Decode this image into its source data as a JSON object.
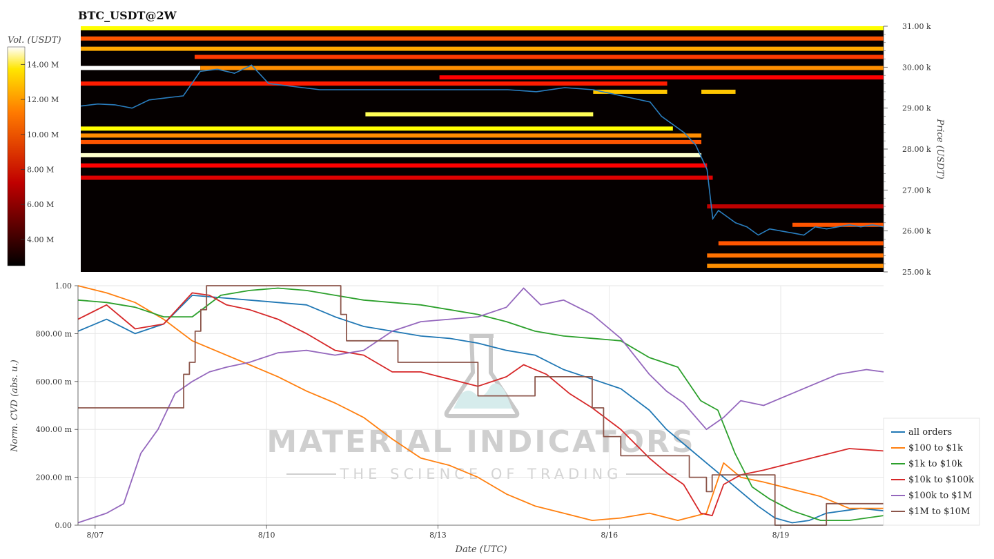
{
  "window": {
    "title": "BTC_USDT@2W"
  },
  "colorbar": {
    "label": "Vol. (USDT)",
    "min": 2500000,
    "max": 15000000,
    "ticks": [
      "4.00 M",
      "6.00 M",
      "8.00 M",
      "10.00 M",
      "12.00 M",
      "14.00 M"
    ],
    "tick_values": [
      4000000,
      6000000,
      8000000,
      10000000,
      12000000,
      14000000
    ],
    "colormap": "hot"
  },
  "watermark": {
    "line1": "MATERIAL INDICATORS",
    "line2": "THE SCIENCE OF TRADING"
  },
  "legend": {
    "placement": "right"
  },
  "chart_data": [
    {
      "type": "heatmap",
      "ylabel": "Price (USDT)",
      "ylim": [
        25000,
        31000
      ],
      "y_ticks": [
        "25.00 k",
        "26.00 k",
        "27.00 k",
        "28.00 k",
        "29.00 k",
        "30.00 k",
        "31.00 k"
      ],
      "y_tick_values": [
        25000,
        26000,
        27000,
        28000,
        29000,
        30000,
        31000
      ],
      "x_range": [
        0,
        14.1
      ],
      "colormap": "hot",
      "series": [
        {
          "name": "",
          "color": "#2a7fc1",
          "x": [
            0,
            0.3,
            0.6,
            0.9,
            1.2,
            1.5,
            1.8,
            2.1,
            2.4,
            2.7,
            3.0,
            3.3,
            3.6,
            3.9,
            4.2,
            4.5,
            5,
            5.5,
            6,
            6.5,
            7,
            7.5,
            8,
            8.5,
            9,
            9.5,
            10,
            10.2,
            10.4,
            10.6,
            10.8,
            11.0,
            11.1,
            11.2,
            11.35,
            11.5,
            11.7,
            11.9,
            12.1,
            12.3,
            12.5,
            12.7,
            12.9,
            13.1,
            13.3,
            13.5,
            13.7,
            13.9,
            14.1
          ],
          "y": [
            29050,
            29100,
            29080,
            29000,
            29200,
            29250,
            29300,
            29900,
            29950,
            29850,
            30050,
            29600,
            29550,
            29500,
            29450,
            29450,
            29450,
            29450,
            29450,
            29450,
            29450,
            29450,
            29400,
            29500,
            29450,
            29300,
            29150,
            28800,
            28600,
            28400,
            28100,
            27500,
            26300,
            26500,
            26350,
            26200,
            26100,
            25900,
            26050,
            26000,
            25950,
            25900,
            26100,
            26050,
            26100,
            26150,
            26100,
            26150,
            26100
          ]
        }
      ],
      "bands": [
        {
          "price": 30950,
          "x0": 0,
          "x1": 14.1,
          "level": 0.85
        },
        {
          "price": 30700,
          "x0": 0,
          "x1": 14.1,
          "level": 0.55
        },
        {
          "price": 30450,
          "x0": 0,
          "x1": 14.1,
          "level": 0.7
        },
        {
          "price": 30250,
          "x0": 2.0,
          "x1": 14.1,
          "level": 0.5
        },
        {
          "price": 29980,
          "x0": 0,
          "x1": 2.1,
          "level": 1.0
        },
        {
          "price": 29980,
          "x0": 2.1,
          "x1": 14.1,
          "level": 0.65
        },
        {
          "price": 29750,
          "x0": 6.3,
          "x1": 14.1,
          "level": 0.4
        },
        {
          "price": 29600,
          "x0": 0,
          "x1": 10.3,
          "level": 0.45
        },
        {
          "price": 29400,
          "x0": 9.0,
          "x1": 10.3,
          "level": 0.75
        },
        {
          "price": 29400,
          "x0": 10.9,
          "x1": 11.5,
          "level": 0.75
        },
        {
          "price": 28850,
          "x0": 5.0,
          "x1": 9.0,
          "level": 0.9
        },
        {
          "price": 28500,
          "x0": 0,
          "x1": 10.4,
          "level": 0.85
        },
        {
          "price": 28330,
          "x0": 0,
          "x1": 10.9,
          "level": 0.65
        },
        {
          "price": 28170,
          "x0": 0,
          "x1": 10.9,
          "level": 0.55
        },
        {
          "price": 27850,
          "x0": 0,
          "x1": 10.9,
          "level": 0.97
        },
        {
          "price": 27600,
          "x0": 0,
          "x1": 11.0,
          "level": 0.4
        },
        {
          "price": 27300,
          "x0": 0,
          "x1": 11.1,
          "level": 0.35
        },
        {
          "price": 26600,
          "x0": 11.0,
          "x1": 14.1,
          "level": 0.3
        },
        {
          "price": 26150,
          "x0": 12.5,
          "x1": 14.1,
          "level": 0.55
        },
        {
          "price": 25700,
          "x0": 11.2,
          "x1": 14.1,
          "level": 0.55
        },
        {
          "price": 25400,
          "x0": 11.0,
          "x1": 14.1,
          "level": 0.6
        },
        {
          "price": 25150,
          "x0": 11.0,
          "x1": 14.1,
          "level": 0.65
        }
      ]
    },
    {
      "type": "line",
      "xlabel": "Date (UTC)",
      "ylabel": "Norm. CVD (abs. u.)",
      "xlim": [
        0,
        14.1
      ],
      "ylim": [
        0,
        1
      ],
      "grid": true,
      "categories": [
        "8/07",
        "8/10",
        "8/13",
        "8/16",
        "8/19"
      ],
      "x_tick_positions": [
        0.3,
        3.3,
        6.3,
        9.3,
        12.3
      ],
      "y_ticks": [
        "0.00",
        "200.00 m",
        "400.00 m",
        "600.00 m",
        "800.00 m",
        "1.00"
      ],
      "y_tick_values": [
        0,
        0.2,
        0.4,
        0.6,
        0.8,
        1.0
      ],
      "series": [
        {
          "name": "all orders",
          "color": "#1f77b4",
          "x": [
            0,
            0.5,
            1.0,
            1.5,
            2.0,
            2.5,
            3.0,
            3.5,
            4.0,
            4.5,
            5.0,
            5.5,
            6.0,
            6.5,
            7.0,
            7.5,
            8.0,
            8.5,
            9.0,
            9.5,
            10.0,
            10.3,
            10.6,
            11.0,
            11.3,
            11.6,
            11.9,
            12.2,
            12.5,
            12.8,
            13.1,
            13.4,
            13.7,
            14.1
          ],
          "y": [
            0.81,
            0.86,
            0.8,
            0.84,
            0.96,
            0.95,
            0.94,
            0.93,
            0.92,
            0.87,
            0.83,
            0.81,
            0.79,
            0.78,
            0.76,
            0.73,
            0.71,
            0.65,
            0.61,
            0.57,
            0.48,
            0.4,
            0.34,
            0.26,
            0.2,
            0.14,
            0.08,
            0.03,
            0.01,
            0.02,
            0.05,
            0.06,
            0.07,
            0.06
          ]
        },
        {
          "name": "$100 to $1k",
          "color": "#ff7f0e",
          "x": [
            0,
            0.5,
            1.0,
            1.5,
            2.0,
            2.5,
            3.0,
            3.5,
            4.0,
            4.5,
            5.0,
            5.5,
            6.0,
            6.5,
            7.0,
            7.5,
            8.0,
            8.5,
            9.0,
            9.5,
            10.0,
            10.5,
            11.0,
            11.3,
            11.6,
            12.0,
            12.5,
            13.0,
            13.5,
            14.1
          ],
          "y": [
            1.0,
            0.97,
            0.93,
            0.86,
            0.77,
            0.72,
            0.67,
            0.62,
            0.56,
            0.51,
            0.45,
            0.36,
            0.28,
            0.25,
            0.2,
            0.13,
            0.08,
            0.05,
            0.02,
            0.03,
            0.05,
            0.02,
            0.05,
            0.26,
            0.2,
            0.18,
            0.15,
            0.12,
            0.07,
            0.07
          ]
        },
        {
          "name": "$1k to $10k",
          "color": "#2ca02c",
          "x": [
            0,
            0.5,
            1.0,
            1.5,
            2.0,
            2.5,
            3.0,
            3.5,
            4.0,
            4.5,
            5.0,
            5.5,
            6.0,
            6.5,
            7.0,
            7.5,
            8.0,
            8.5,
            9.0,
            9.5,
            10.0,
            10.5,
            10.9,
            11.2,
            11.5,
            11.8,
            12.1,
            12.5,
            13.0,
            13.5,
            14.1
          ],
          "y": [
            0.94,
            0.93,
            0.91,
            0.87,
            0.87,
            0.96,
            0.98,
            0.99,
            0.98,
            0.96,
            0.94,
            0.93,
            0.92,
            0.9,
            0.88,
            0.85,
            0.81,
            0.79,
            0.78,
            0.77,
            0.7,
            0.66,
            0.52,
            0.48,
            0.3,
            0.16,
            0.11,
            0.06,
            0.02,
            0.02,
            0.04
          ]
        },
        {
          "name": "$10k to $100k",
          "color": "#d62728",
          "x": [
            0,
            0.5,
            1.0,
            1.5,
            2.0,
            2.3,
            2.6,
            3.0,
            3.5,
            4.0,
            4.5,
            5.0,
            5.5,
            6.0,
            6.5,
            7.0,
            7.5,
            7.8,
            8.2,
            8.6,
            9.0,
            9.5,
            10.0,
            10.3,
            10.6,
            10.9,
            11.1,
            11.3,
            11.6,
            12.0,
            12.5,
            13.0,
            13.5,
            14.1
          ],
          "y": [
            0.86,
            0.92,
            0.82,
            0.84,
            0.97,
            0.96,
            0.92,
            0.9,
            0.86,
            0.8,
            0.73,
            0.71,
            0.64,
            0.64,
            0.61,
            0.58,
            0.62,
            0.67,
            0.63,
            0.55,
            0.49,
            0.4,
            0.28,
            0.22,
            0.17,
            0.05,
            0.04,
            0.17,
            0.21,
            0.23,
            0.26,
            0.29,
            0.32,
            0.31
          ]
        },
        {
          "name": "$100k to $1M",
          "color": "#9467bd",
          "x": [
            0,
            0.5,
            0.8,
            1.1,
            1.4,
            1.7,
            2.0,
            2.3,
            2.6,
            3.0,
            3.5,
            4.0,
            4.5,
            5.0,
            5.5,
            6.0,
            6.5,
            7.0,
            7.5,
            7.8,
            8.1,
            8.5,
            9.0,
            9.5,
            10.0,
            10.3,
            10.6,
            11.0,
            11.3,
            11.6,
            12.0,
            12.3,
            12.8,
            13.3,
            13.8,
            14.1
          ],
          "y": [
            0.01,
            0.05,
            0.09,
            0.3,
            0.4,
            0.55,
            0.6,
            0.64,
            0.66,
            0.68,
            0.72,
            0.73,
            0.71,
            0.73,
            0.81,
            0.85,
            0.86,
            0.87,
            0.91,
            0.99,
            0.92,
            0.94,
            0.88,
            0.78,
            0.63,
            0.56,
            0.51,
            0.4,
            0.45,
            0.52,
            0.5,
            0.53,
            0.58,
            0.63,
            0.65,
            0.64
          ]
        },
        {
          "name": "$1M to $10M",
          "color": "#8c564b",
          "step": true,
          "x": [
            0,
            1.85,
            1.95,
            2.05,
            2.15,
            2.25,
            2.35,
            2.45,
            3.0,
            4.5,
            4.6,
            4.7,
            4.8,
            5.6,
            6.0,
            7.0,
            8.0,
            8.5,
            9.0,
            9.2,
            9.5,
            10.0,
            10.7,
            11.0,
            11.1,
            11.5,
            12.0,
            12.2,
            12.5,
            13.1,
            13.5,
            14.1
          ],
          "y": [
            0.49,
            0.63,
            0.68,
            0.81,
            0.9,
            1.0,
            1.0,
            1.0,
            1.0,
            1.0,
            0.88,
            0.77,
            0.77,
            0.68,
            0.68,
            0.54,
            0.62,
            0.62,
            0.49,
            0.37,
            0.29,
            0.29,
            0.2,
            0.14,
            0.21,
            0.21,
            0.21,
            0.0,
            0.0,
            0.09,
            0.09,
            0.09
          ]
        }
      ]
    }
  ]
}
